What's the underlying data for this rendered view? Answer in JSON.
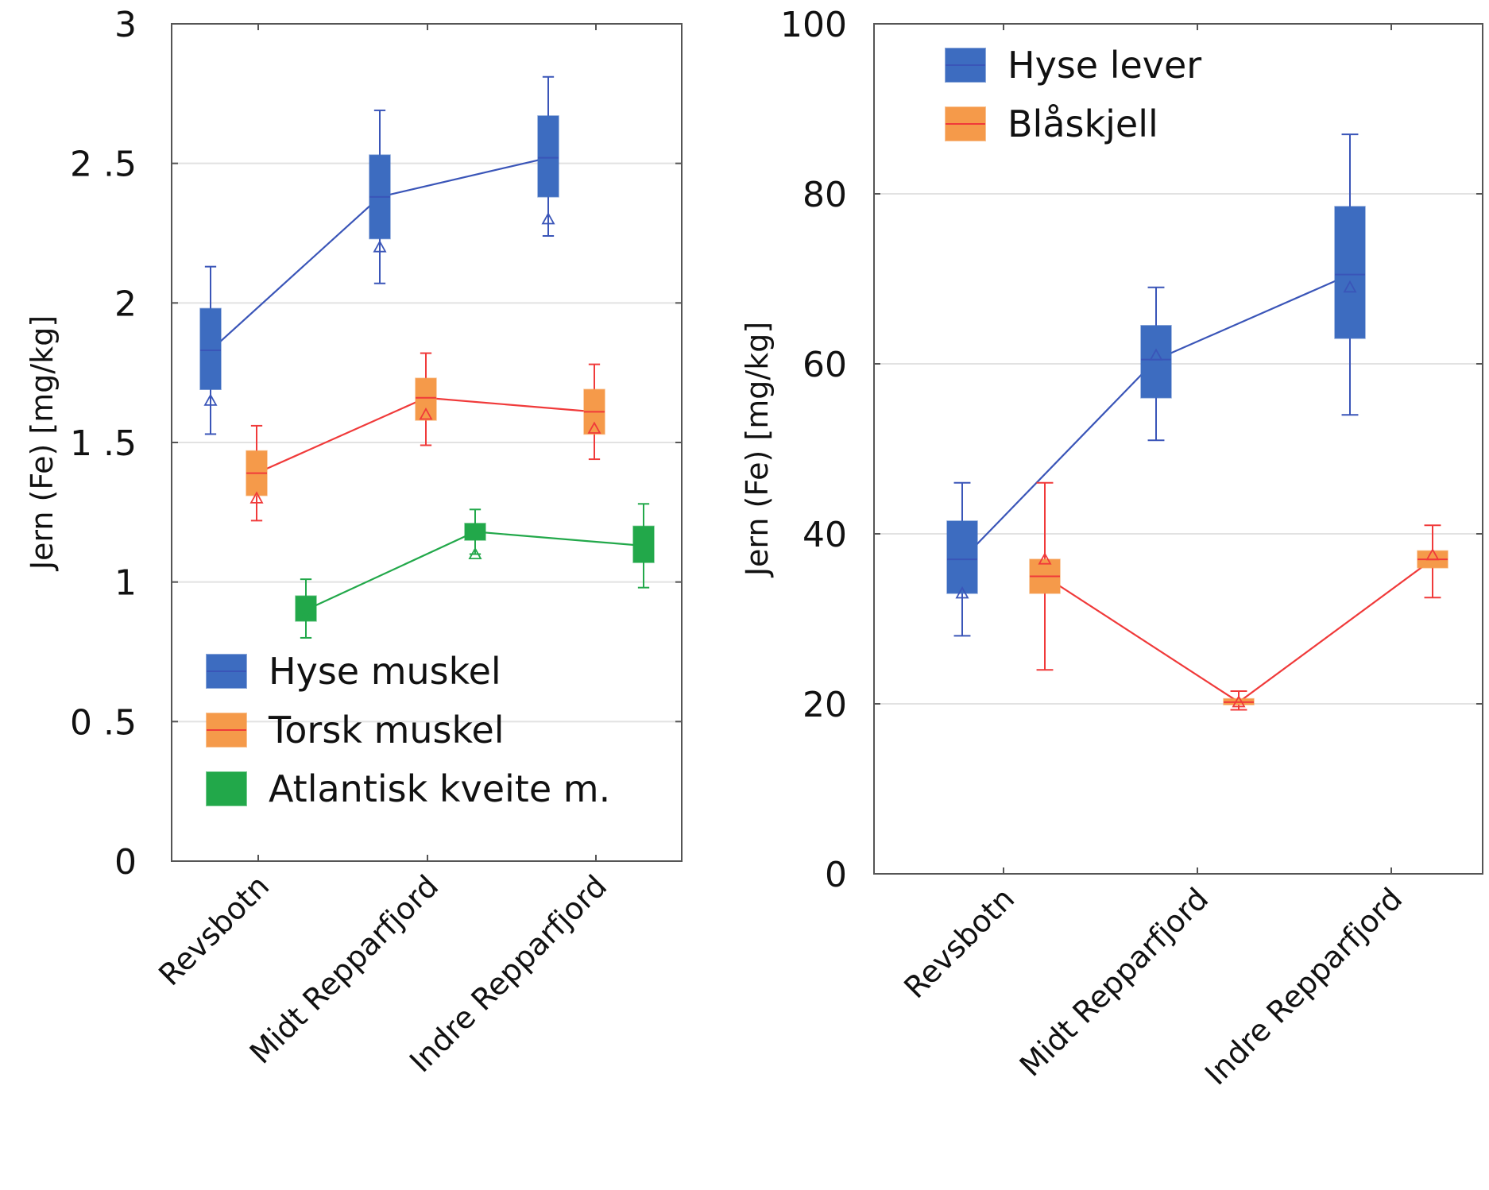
{
  "chart_data": [
    {
      "type": "box",
      "ylabel": "Jern (Fe) [mg/kg]",
      "ylim": [
        0,
        3
      ],
      "yticks": [
        "0",
        "0 .5",
        "1",
        "1 .5",
        "2",
        "2 .5",
        "3"
      ],
      "ytick_values": [
        0,
        0.5,
        1,
        1.5,
        2,
        2.5,
        3
      ],
      "categories": [
        "Revsbotn",
        "Midt Repparfjord",
        "Indre Repparfjord"
      ],
      "grid": "horizontal",
      "legend_position": "bottom-right",
      "series": [
        {
          "name": "Hyse muskel",
          "color": "#3d6cc0",
          "line_color": "#3a55b8",
          "boxes": [
            {
              "whisker_low": 1.53,
              "q1": 1.69,
              "median": 1.83,
              "q3": 1.98,
              "whisker_high": 2.13,
              "mean": 1.65
            },
            {
              "whisker_low": 2.07,
              "q1": 2.23,
              "median": 2.38,
              "q3": 2.53,
              "whisker_high": 2.69,
              "mean": 2.2
            },
            {
              "whisker_low": 2.24,
              "q1": 2.38,
              "median": 2.52,
              "q3": 2.67,
              "whisker_high": 2.81,
              "mean": 2.3
            }
          ]
        },
        {
          "name": "Torsk muskel",
          "color": "#f59a4a",
          "line_color": "#f03a3a",
          "boxes": [
            {
              "whisker_low": 1.22,
              "q1": 1.31,
              "median": 1.39,
              "q3": 1.47,
              "whisker_high": 1.56,
              "mean": 1.3
            },
            {
              "whisker_low": 1.49,
              "q1": 1.58,
              "median": 1.66,
              "q3": 1.73,
              "whisker_high": 1.82,
              "mean": 1.6
            },
            {
              "whisker_low": 1.44,
              "q1": 1.53,
              "median": 1.61,
              "q3": 1.69,
              "whisker_high": 1.78,
              "mean": 1.55
            }
          ]
        },
        {
          "name": "Atlantisk  kveite m.",
          "color": "#22a84a",
          "line_color": "#22a84a",
          "boxes": [
            {
              "whisker_low": 0.8,
              "q1": 0.86,
              "median": 0.9,
              "q3": 0.95,
              "whisker_high": 1.01,
              "mean": 0.88
            },
            {
              "whisker_low": 1.1,
              "q1": 1.15,
              "median": 1.18,
              "q3": 1.21,
              "whisker_high": 1.26,
              "mean": 1.1
            },
            {
              "whisker_low": 0.98,
              "q1": 1.07,
              "median": 1.13,
              "q3": 1.2,
              "whisker_high": 1.28,
              "mean": 1.11
            }
          ]
        }
      ]
    },
    {
      "type": "box",
      "ylabel": "Jern (Fe) [mg/kg]",
      "ylim": [
        0,
        100
      ],
      "yticks": [
        "0",
        "20",
        "40",
        "60",
        "80",
        "100"
      ],
      "ytick_values": [
        0,
        20,
        40,
        60,
        80,
        100
      ],
      "categories": [
        "Revsbotn",
        "Midt Repparfjord",
        "Indre Repparfjord"
      ],
      "grid": "horizontal",
      "legend_position": "top-left",
      "series": [
        {
          "name": "Hyse lever",
          "color": "#3d6cc0",
          "line_color": "#3a55b8",
          "boxes": [
            {
              "whisker_low": 28,
              "q1": 33,
              "median": 37,
              "q3": 41.5,
              "whisker_high": 46,
              "mean": 33
            },
            {
              "whisker_low": 51,
              "q1": 56,
              "median": 60.5,
              "q3": 64.5,
              "whisker_high": 69,
              "mean": 61
            },
            {
              "whisker_low": 54,
              "q1": 63,
              "median": 70.5,
              "q3": 78.5,
              "whisker_high": 87,
              "mean": 69
            }
          ]
        },
        {
          "name": "Blåskjell",
          "color": "#f59a4a",
          "line_color": "#f03a3a",
          "boxes": [
            {
              "whisker_low": 24,
              "q1": 33,
              "median": 35,
              "q3": 37,
              "whisker_high": 46,
              "mean": 37
            },
            {
              "whisker_low": 19.3,
              "q1": 19.9,
              "median": 20.2,
              "q3": 20.6,
              "whisker_high": 21.5,
              "mean": 20.2
            },
            {
              "whisker_low": 32.5,
              "q1": 36,
              "median": 37,
              "q3": 38,
              "whisker_high": 41,
              "mean": 37.5
            }
          ]
        }
      ]
    }
  ]
}
